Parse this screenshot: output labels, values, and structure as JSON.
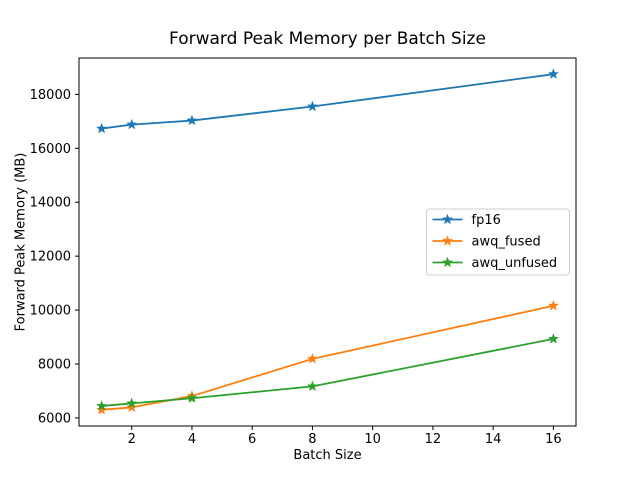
{
  "chart_data": {
    "type": "line",
    "title": "Forward Peak Memory per Batch Size",
    "xlabel": "Batch Size",
    "ylabel": "Forward Peak Memory (MB)",
    "x": [
      1,
      2,
      4,
      8,
      16
    ],
    "series": [
      {
        "name": "fp16",
        "color": "#1f77b4",
        "values": [
          16730,
          16880,
          17030,
          17550,
          18750
        ]
      },
      {
        "name": "awq_fused",
        "color": "#ff7f0e",
        "values": [
          6300,
          6390,
          6810,
          8190,
          10160
        ]
      },
      {
        "name": "awq_unfused",
        "color": "#2ca02c",
        "values": [
          6440,
          6540,
          6730,
          7170,
          8930
        ]
      }
    ],
    "xlim": [
      0.25,
      16.75
    ],
    "ylim": [
      5700,
      19350
    ],
    "xticks": [
      2,
      4,
      6,
      8,
      10,
      12,
      14,
      16
    ],
    "yticks": [
      6000,
      8000,
      10000,
      12000,
      14000,
      16000,
      18000
    ],
    "grid": false,
    "marker": "star",
    "legend_position": "center right",
    "legend_entries": [
      "fp16",
      "awq_fused",
      "awq_unfused"
    ],
    "colors": {
      "spine": "#000000",
      "legend_border": "#cccccc",
      "background": "#ffffff"
    }
  }
}
